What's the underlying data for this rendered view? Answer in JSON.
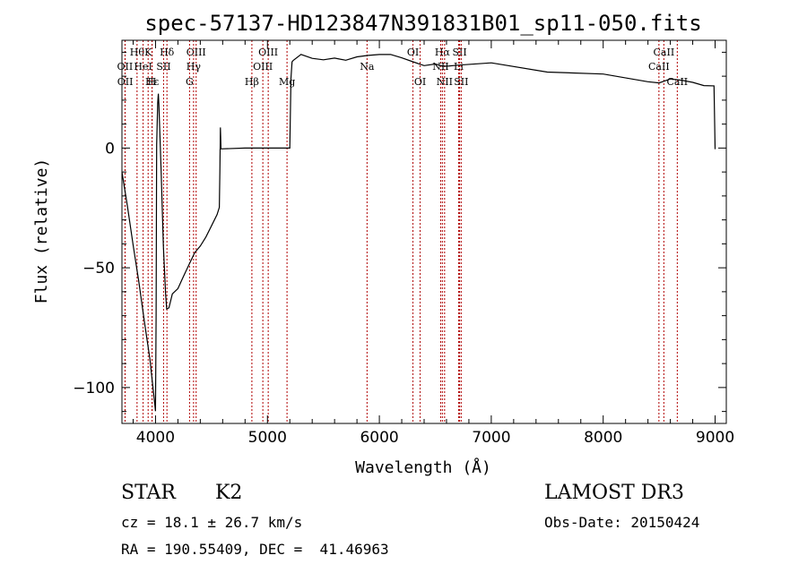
{
  "chart_data": {
    "type": "line",
    "title": "spec-57137-HD123847N391831B01_sp11-050.fits",
    "xlabel": "Wavelength (Å)",
    "ylabel": "Flux (relative)",
    "xlim": [
      3700,
      9100
    ],
    "ylim": [
      -115,
      45
    ],
    "xticks": [
      4000,
      5000,
      6000,
      7000,
      8000,
      9000
    ],
    "yticks": [
      -100,
      -50,
      0
    ],
    "series": [
      {
        "name": "spectrum",
        "x": [
          3700,
          3750,
          3800,
          3850,
          3900,
          3950,
          3970,
          3990,
          4000,
          4005,
          4010,
          4020,
          4025,
          4030,
          4050,
          4070,
          4090,
          4100,
          4120,
          4150,
          4200,
          4250,
          4300,
          4350,
          4400,
          4450,
          4500,
          4550,
          4570,
          4575,
          4580,
          4585,
          4800,
          5000,
          5100,
          5200,
          5210,
          5220,
          5230,
          5300,
          5400,
          5500,
          5600,
          5700,
          5800,
          5900,
          6000,
          6100,
          6200,
          6300,
          6400,
          6500,
          6560,
          6600,
          6700,
          7000,
          7500,
          8000,
          8400,
          8500,
          8600,
          8700,
          8800,
          8900,
          8990,
          9000
        ],
        "y": [
          -10,
          -24,
          -40,
          -55,
          -72,
          -88,
          -96,
          -105,
          -110,
          -70,
          0,
          20,
          23,
          18,
          -10,
          -40,
          -60,
          -68,
          -66,
          -62,
          -60,
          -55,
          -50,
          -45,
          -42,
          -38,
          -33,
          -28,
          -25,
          -10,
          10,
          0,
          0,
          0,
          0,
          0,
          30,
          36,
          37,
          38,
          37,
          37,
          38,
          37,
          38,
          38,
          38,
          38,
          37,
          36,
          35,
          36,
          34,
          35,
          35,
          35,
          33,
          31,
          29,
          28,
          29,
          28,
          27,
          26,
          26,
          0
        ]
      }
    ],
    "line_markers": [
      {
        "row": 1,
        "wavelength": 3835,
        "label": "Hθ"
      },
      {
        "row": 1,
        "wavelength": 3934,
        "label": "K"
      },
      {
        "row": 1,
        "wavelength": 4102,
        "label": "Hδ"
      },
      {
        "row": 1,
        "wavelength": 4363,
        "label": "OIII"
      },
      {
        "row": 1,
        "wavelength": 5007,
        "label": "OIII"
      },
      {
        "row": 1,
        "wavelength": 6300,
        "label": "OI"
      },
      {
        "row": 1,
        "wavelength": 6563,
        "label": "Hα"
      },
      {
        "row": 1,
        "wavelength": 6717,
        "label": "SII"
      },
      {
        "row": 1,
        "wavelength": 8542,
        "label": "CaII"
      },
      {
        "row": 2,
        "wavelength": 3727,
        "label": "OII"
      },
      {
        "row": 2,
        "wavelength": 3889,
        "label": "HeI"
      },
      {
        "row": 2,
        "wavelength": 4072,
        "label": "SII"
      },
      {
        "row": 2,
        "wavelength": 4340,
        "label": "Hγ"
      },
      {
        "row": 2,
        "wavelength": 4959,
        "label": "OIII"
      },
      {
        "row": 2,
        "wavelength": 5890,
        "label": "Na"
      },
      {
        "row": 2,
        "wavelength": 6548,
        "label": "NII"
      },
      {
        "row": 2,
        "wavelength": 6708,
        "label": "Li"
      },
      {
        "row": 2,
        "wavelength": 8498,
        "label": "CaII"
      },
      {
        "row": 3,
        "wavelength": 3729,
        "label": "OII"
      },
      {
        "row": 3,
        "wavelength": 3970,
        "label": "Hε"
      },
      {
        "row": 3,
        "wavelength": 3968,
        "label": "H"
      },
      {
        "row": 3,
        "wavelength": 4304,
        "label": "G"
      },
      {
        "row": 3,
        "wavelength": 4861,
        "label": "Hβ"
      },
      {
        "row": 3,
        "wavelength": 5175,
        "label": "Mg"
      },
      {
        "row": 3,
        "wavelength": 6364,
        "label": "OI"
      },
      {
        "row": 3,
        "wavelength": 6583,
        "label": "NII"
      },
      {
        "row": 3,
        "wavelength": 6731,
        "label": "SII"
      },
      {
        "row": 3,
        "wavelength": 8662,
        "label": "CaII"
      }
    ],
    "colors": {
      "spectrum": "#000000",
      "markers": "#b00000"
    }
  },
  "info": {
    "object_class": "STAR",
    "subclass": "K2",
    "cz": "cz = 18.1 ± 26.7 km/s",
    "coords": "RA = 190.55409, DEC =  41.46963",
    "survey": "LAMOST DR3",
    "obs_date": "Obs-Date: 20150424"
  }
}
